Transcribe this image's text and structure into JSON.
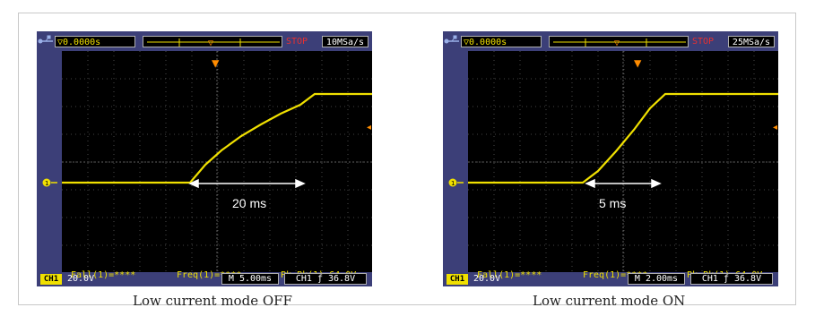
{
  "panels": [
    {
      "trigger_time_prefix": "▽→",
      "trigger_time": "▽0.0000s",
      "status": "STOP",
      "sample_rate": "10MSa/s",
      "measurements": {
        "fall": "Fall(1)=****",
        "freq": "Freq(1)=****",
        "pkpk": "Pk-Pk(1)=64.0V"
      },
      "channel_label": "CH1",
      "channel_scale": "20.0V",
      "time_base": "M 5.00ms",
      "trigger": "CH1 ƒ 36.8V",
      "annotation": "20 ms",
      "caption": "Low current mode OFF"
    },
    {
      "trigger_time_prefix": "▽→",
      "trigger_time": "▽0.0000s",
      "status": "STOP",
      "sample_rate": "25MSa/s",
      "measurements": {
        "fall": "Fall(1)=****",
        "freq": "Freq(1)=****",
        "pkpk": "Pk-Pk(1)=64.0V"
      },
      "channel_label": "CH1",
      "channel_scale": "20.0V",
      "time_base": "M 2.00ms",
      "trigger": "CH1 ƒ 36.8V",
      "annotation": "5 ms",
      "caption": "Low current mode ON"
    }
  ],
  "colors": {
    "trace": "#f0e000",
    "bezel": "#3c3f78",
    "screen": "#000000",
    "stop": "#e83030"
  },
  "icons": [
    "usb-icon",
    "trigger-marker-icon",
    "channel1-marker-icon",
    "trigger-level-icon"
  ]
}
